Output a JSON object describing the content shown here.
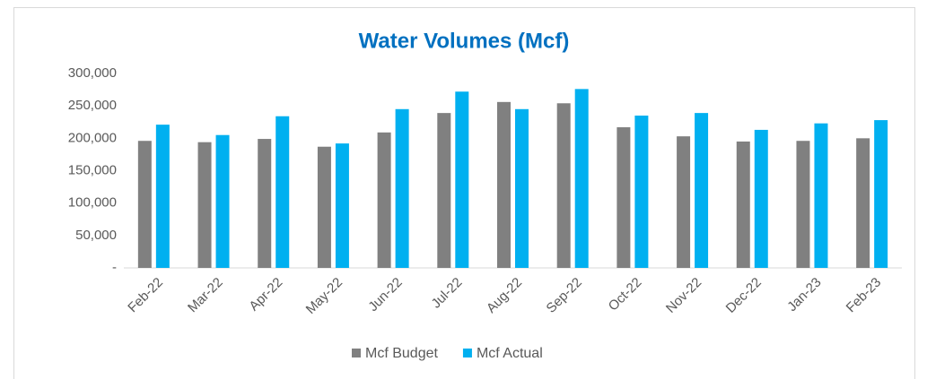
{
  "chart_data": {
    "type": "bar",
    "title": "Water Volumes (Mcf)",
    "categories": [
      "Feb-22",
      "Mar-22",
      "Apr-22",
      "May-22",
      "Jun-22",
      "Jul-22",
      "Aug-22",
      "Sep-22",
      "Oct-22",
      "Nov-22",
      "Dec-22",
      "Jan-23",
      "Feb-23"
    ],
    "series": [
      {
        "name": "Mcf Budget",
        "color": "#808080",
        "values": [
          196000,
          194000,
          199000,
          187000,
          209000,
          239000,
          256000,
          254000,
          217000,
          203000,
          195000,
          196000,
          200000
        ]
      },
      {
        "name": "Mcf Actual",
        "color": "#00b0f0",
        "values": [
          221000,
          205000,
          234000,
          192000,
          245000,
          272000,
          245000,
          276000,
          235000,
          239000,
          213000,
          223000,
          228000
        ]
      }
    ],
    "ylim": [
      0,
      300000
    ],
    "yticks": [
      {
        "value": 0,
        "label": "-"
      },
      {
        "value": 50000,
        "label": "50,000"
      },
      {
        "value": 100000,
        "label": "100,000"
      },
      {
        "value": 150000,
        "label": "150,000"
      },
      {
        "value": 200000,
        "label": "200,000"
      },
      {
        "value": 250000,
        "label": "250,000"
      },
      {
        "value": 300000,
        "label": "300,000"
      }
    ],
    "grid": false,
    "legend": "bottom"
  }
}
